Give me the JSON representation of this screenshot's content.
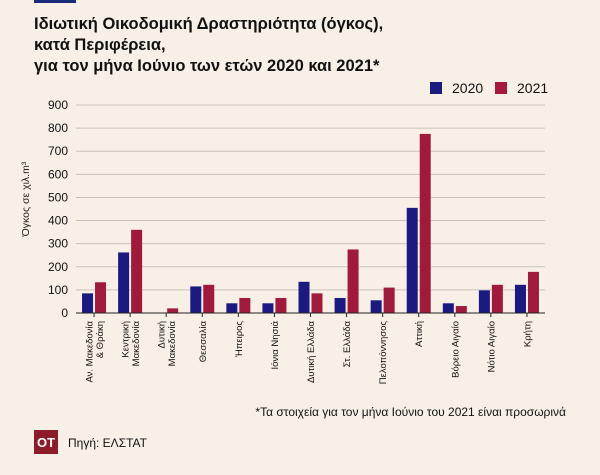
{
  "title_lines": [
    "Ιδιωτική Οικοδομική Δραστηριότητα (όγκος),",
    "κατά Περιφέρεια,",
    "για τον μήνα Ιούνιο των ετών 2020 και 2021*"
  ],
  "logo_text": "ΟΤ",
  "source": "Πηγή: ΕΛΣΤΑΤ",
  "footnote": "*Τα στοιχεία για τον μήνα Ιούνιο του 2021 είναι προσωρινά",
  "colors": {
    "s2020": "#1a1a80",
    "s2021": "#a01a3c",
    "grid": "#c9c2b8",
    "axis": "#222222",
    "background": "#f8f0e6"
  },
  "chart_data": {
    "type": "bar",
    "ylabel": "Όγκος σε χιλ.m³",
    "ylim": [
      0,
      900
    ],
    "yticks": [
      0,
      100,
      200,
      300,
      400,
      500,
      600,
      700,
      800,
      900
    ],
    "grid": true,
    "legend_position": "top-right",
    "categories": [
      "Αν. Μακεδονία & Θράκη",
      "Κεντρική Μακεδονία",
      "Δυτική Μακεδονία",
      "Θεσσαλία",
      "Ήπειρος",
      "Ιόνια Νησιά",
      "Δυτική Ελλάδα",
      "Στ. Ελλάδα",
      "Πελοπόννησος",
      "Αττική",
      "Βόρειο Αιγαίο",
      "Νότιο Αιγαίο",
      "Κρήτη"
    ],
    "series": [
      {
        "name": "2020",
        "values": [
          85,
          262,
          2,
          115,
          42,
          42,
          135,
          65,
          55,
          455,
          42,
          98,
          122
        ]
      },
      {
        "name": "2021",
        "values": [
          133,
          360,
          20,
          122,
          65,
          65,
          85,
          275,
          110,
          775,
          30,
          122,
          178
        ]
      }
    ]
  }
}
